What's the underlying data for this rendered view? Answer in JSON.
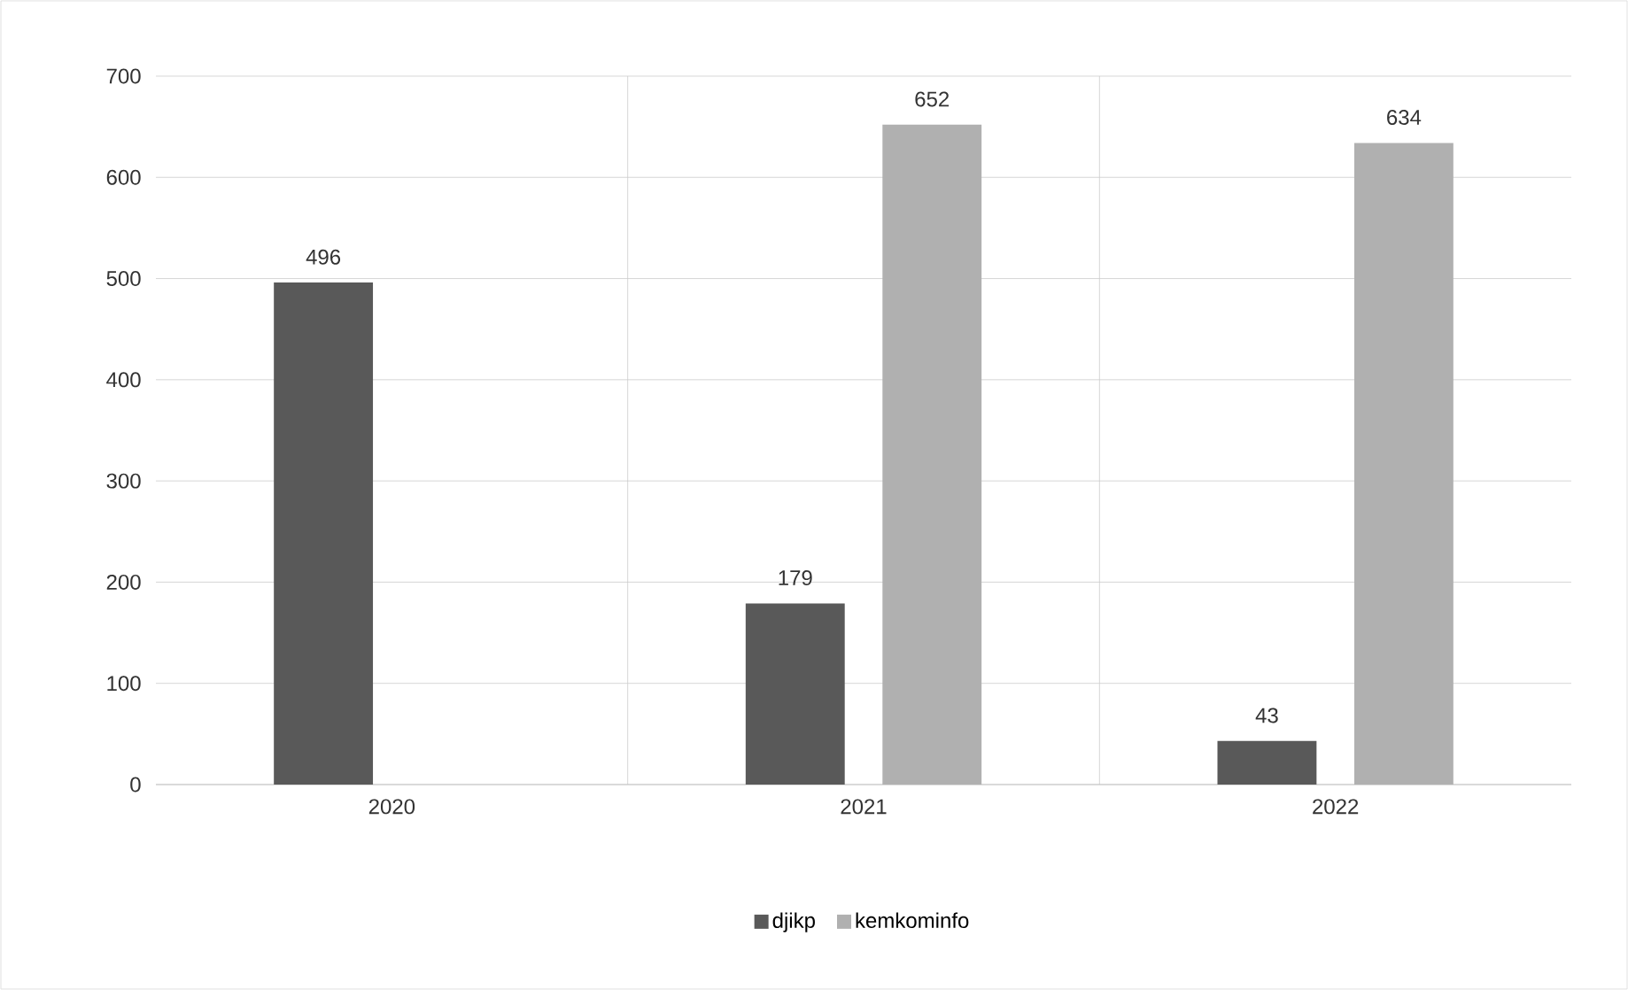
{
  "chart_data": {
    "type": "bar",
    "categories": [
      "2020",
      "2021",
      "2022"
    ],
    "series": [
      {
        "name": "djikp",
        "color": "#595959",
        "values": [
          496,
          179,
          43
        ]
      },
      {
        "name": "kemkominfo",
        "color": "#b0b0b0",
        "values": [
          null,
          652,
          634
        ]
      }
    ],
    "ylim": [
      0,
      700
    ],
    "yticks": [
      0,
      100,
      200,
      300,
      400,
      500,
      600,
      700
    ],
    "grid": true,
    "legend": "bottom",
    "data_labels": true
  }
}
